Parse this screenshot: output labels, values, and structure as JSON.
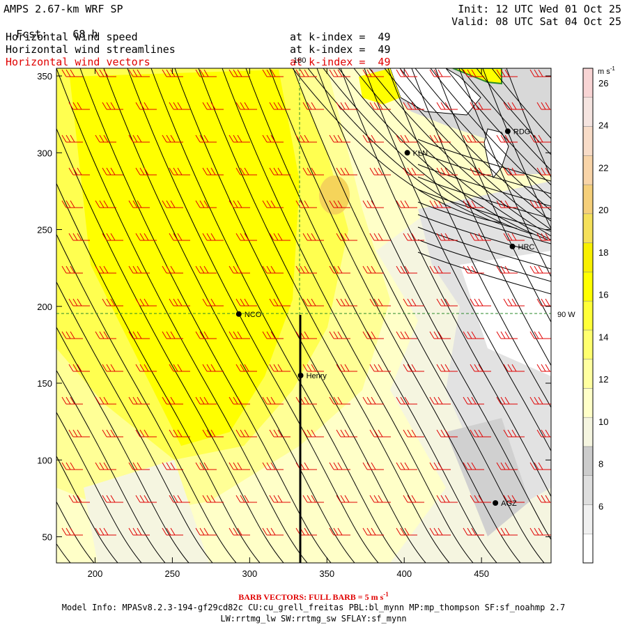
{
  "header": {
    "model": "AMPS 2.67-km WRF SP",
    "fcst_label": "Fcst:",
    "fcst_value": "68 h",
    "init": "Init: 12 UTC Wed 01 Oct 25",
    "valid": "Valid: 08 UTC Sat 04 Oct 25",
    "fields": [
      {
        "name": "Horizontal wind speed",
        "level": "at k-index =  49"
      },
      {
        "name": "Horizontal wind streamlines",
        "level": "at k-index =  49"
      },
      {
        "name": "Horizontal wind vectors",
        "level": "at k-index =  49"
      }
    ]
  },
  "map": {
    "x_ticks": [
      200,
      250,
      300,
      350,
      400,
      450
    ],
    "y_ticks": [
      50,
      100,
      150,
      200,
      250,
      300,
      350
    ],
    "xlim": [
      175,
      495
    ],
    "ylim": [
      33,
      355
    ],
    "lines": {
      "meridian_180": "180",
      "meridian_90w": "90 W"
    },
    "stations": [
      {
        "id": "NCO",
        "x": 293,
        "y": 195
      },
      {
        "id": "Henry",
        "x": 333,
        "y": 155
      },
      {
        "id": "KLN",
        "x": 402,
        "y": 300
      },
      {
        "id": "RDG",
        "x": 467,
        "y": 314
      },
      {
        "id": "HRC",
        "x": 470,
        "y": 239
      },
      {
        "id": "AGZ",
        "x": 459,
        "y": 72
      }
    ],
    "colors": {
      "vectors": "#e00000",
      "streamlines": "#000000",
      "grid": "#2a8a2a"
    }
  },
  "colorbar": {
    "units": "m s",
    "units_exp": "-1",
    "labels": [
      6,
      8,
      10,
      12,
      14,
      16,
      18,
      20,
      22,
      24,
      26
    ],
    "colors": [
      "#ffffff",
      "#f0f0f0",
      "#dedede",
      "#cccccc",
      "#f5f5e0",
      "#ffffc8",
      "#ffffa0",
      "#ffff6e",
      "#ffff38",
      "#ffff00",
      "#f8f000",
      "#f5e05a",
      "#f5cf7a",
      "#f8d4a8",
      "#f8dcc8",
      "#f5e4e0",
      "#f8d4d4"
    ]
  },
  "footer": {
    "barb_text": "BARB VECTORS:  FULL BARB = 5 m s",
    "barb_exp": "-1",
    "model_info": "Model Info: MPASv8.2.3-194-gf29cd82c CU:cu_grell_freitas PBL:bl_mynn MP:mp_thompson SF:sf_noahmp 2.7",
    "model_info2": "LW:rrtmg_lw SW:rrtmg_sw SFLAY:sf_mynn"
  }
}
